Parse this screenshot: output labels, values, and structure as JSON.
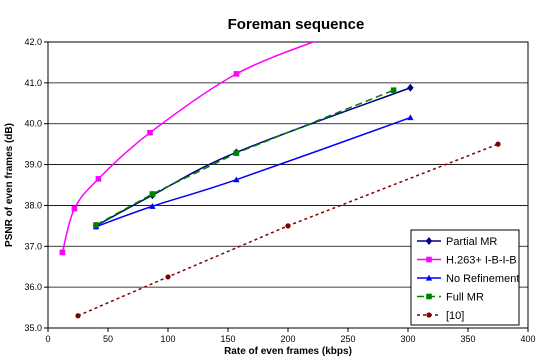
{
  "chart_data": {
    "type": "line",
    "title": "Foreman sequence",
    "xlabel": "Rate of even frames (kbps)",
    "ylabel": "PSNR of even frames (dB)",
    "xlim": [
      0,
      400
    ],
    "ylim": [
      35.0,
      42.0
    ],
    "xticks": [
      0,
      50,
      100,
      150,
      200,
      250,
      300,
      350,
      400
    ],
    "yticks": [
      35.0,
      36.0,
      37.0,
      38.0,
      39.0,
      40.0,
      41.0,
      42.0
    ],
    "grid": "horizontal",
    "legend_position": "bottom-right",
    "series": [
      {
        "name": "Partial MR",
        "color": "#000080",
        "line_style": "solid",
        "marker": "diamond",
        "x": [
          40,
          87,
          157,
          302
        ],
        "y": [
          37.5,
          38.25,
          39.3,
          40.88
        ]
      },
      {
        "name": "H.263+ I-B-I-B",
        "color": "#ff00ff",
        "line_style": "solid",
        "marker": "square",
        "x": [
          12,
          22,
          42,
          85,
          157,
          230
        ],
        "y": [
          36.85,
          37.92,
          38.65,
          39.78,
          41.22,
          42.1
        ]
      },
      {
        "name": "No Refinement",
        "color": "#0000ff",
        "line_style": "solid",
        "marker": "triangle",
        "x": [
          40,
          87,
          157,
          302
        ],
        "y": [
          37.48,
          37.98,
          38.63,
          40.15
        ]
      },
      {
        "name": "Full MR",
        "color": "#008000",
        "line_style": "dashed",
        "marker": "square",
        "x": [
          40,
          87,
          157,
          288
        ],
        "y": [
          37.52,
          38.28,
          39.28,
          40.82
        ]
      },
      {
        "name": "[10]",
        "color": "#800000",
        "line_style": "dotted",
        "marker": "circle",
        "x": [
          25,
          100,
          200,
          375
        ],
        "y": [
          35.3,
          36.25,
          37.5,
          39.5
        ]
      }
    ]
  }
}
